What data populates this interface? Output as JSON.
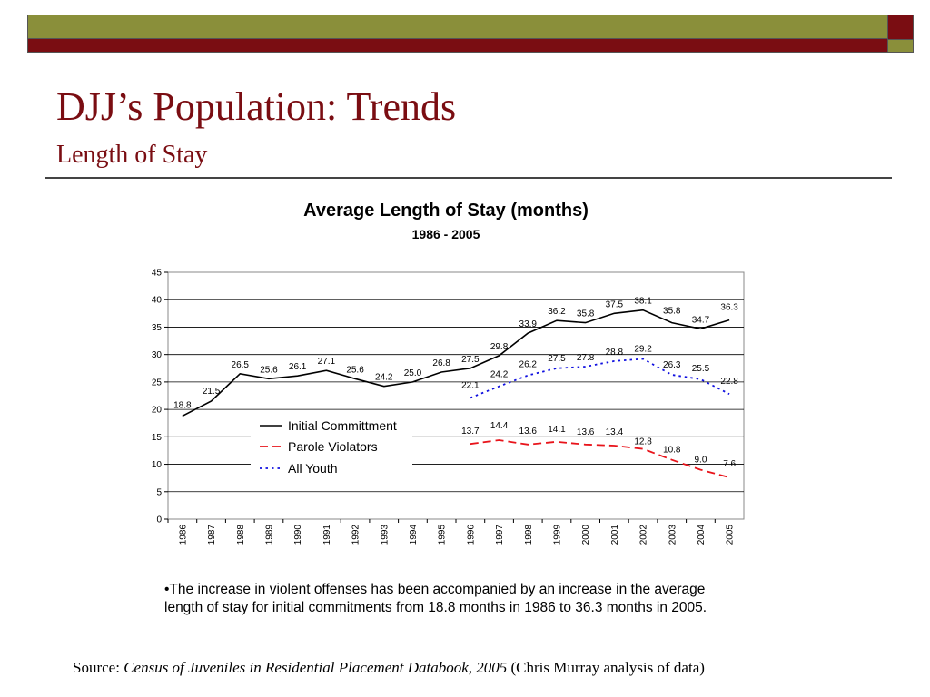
{
  "slide": {
    "title": "DJJ’s Population: Trends",
    "subtitle": "Length of Stay",
    "bullet": "•The increase in violent offenses has been accompanied by an increase in the average length of stay for initial commitments from 18.8 months in 1986 to 36.3 months in 2005.",
    "source_prefix": "Source: ",
    "source_title": "Census of Juveniles in Residential Placement Databook, 2005",
    "source_suffix": " (Chris Murray analysis of data)",
    "colors": {
      "olive": "#8a8f3a",
      "maroon": "#7a0d12"
    }
  },
  "chart_data": {
    "type": "line",
    "title": "Average Length of Stay (months)",
    "subtitle": "1986 - 2005",
    "xlabel": "",
    "ylabel": "",
    "ylim": [
      0,
      45
    ],
    "yticks": [
      0,
      5,
      10,
      15,
      20,
      25,
      30,
      35,
      40,
      45
    ],
    "grid": true,
    "legend_position": "center-left",
    "categories": [
      "1986",
      "1987",
      "1988",
      "1989",
      "1990",
      "1991",
      "1992",
      "1993",
      "1994",
      "1995",
      "1996",
      "1997",
      "1998",
      "1999",
      "2000",
      "2001",
      "2002",
      "2003",
      "2004",
      "2005"
    ],
    "series": [
      {
        "name": "Initial Committment",
        "style": "solid",
        "color": "#000000",
        "values": [
          18.8,
          21.5,
          26.5,
          25.6,
          26.1,
          27.1,
          25.6,
          24.2,
          25.0,
          26.8,
          27.5,
          29.8,
          33.9,
          36.2,
          35.8,
          37.5,
          38.1,
          35.8,
          34.7,
          36.3
        ],
        "labels": [
          "18.8",
          "21.5",
          "26.5",
          "25.6",
          "26.1",
          "27.1",
          "25.6",
          "24.2",
          "25.0",
          "26.8",
          "27.5",
          "29.8",
          "33.9",
          "36.2",
          "35.8",
          "37.5",
          "38.1",
          "35.8",
          "34.7",
          "36.3"
        ]
      },
      {
        "name": "Parole Violators",
        "style": "dashed",
        "color": "#e8141b",
        "values": [
          null,
          null,
          null,
          null,
          null,
          null,
          null,
          null,
          null,
          null,
          13.7,
          14.4,
          13.6,
          14.1,
          13.6,
          13.4,
          12.8,
          10.8,
          9.0,
          7.6
        ],
        "labels": [
          null,
          null,
          null,
          null,
          null,
          null,
          null,
          null,
          null,
          null,
          "13.7",
          "14.4",
          "13.6",
          "14.1",
          "13.6",
          "13.4",
          "12.8",
          "10.8",
          "9.0",
          "7.6"
        ]
      },
      {
        "name": "All Youth",
        "style": "dotted",
        "color": "#1010e0",
        "values": [
          null,
          null,
          null,
          null,
          null,
          null,
          null,
          null,
          null,
          null,
          22.1,
          24.2,
          26.2,
          27.5,
          27.8,
          28.8,
          29.2,
          26.3,
          25.5,
          22.8
        ],
        "labels": [
          null,
          null,
          null,
          null,
          null,
          null,
          null,
          null,
          null,
          null,
          "22.1",
          "24.2",
          "26.2",
          "27.5",
          "27.8",
          "28.8",
          "29.2",
          "26.3",
          "25.5",
          "22.8"
        ]
      }
    ]
  }
}
